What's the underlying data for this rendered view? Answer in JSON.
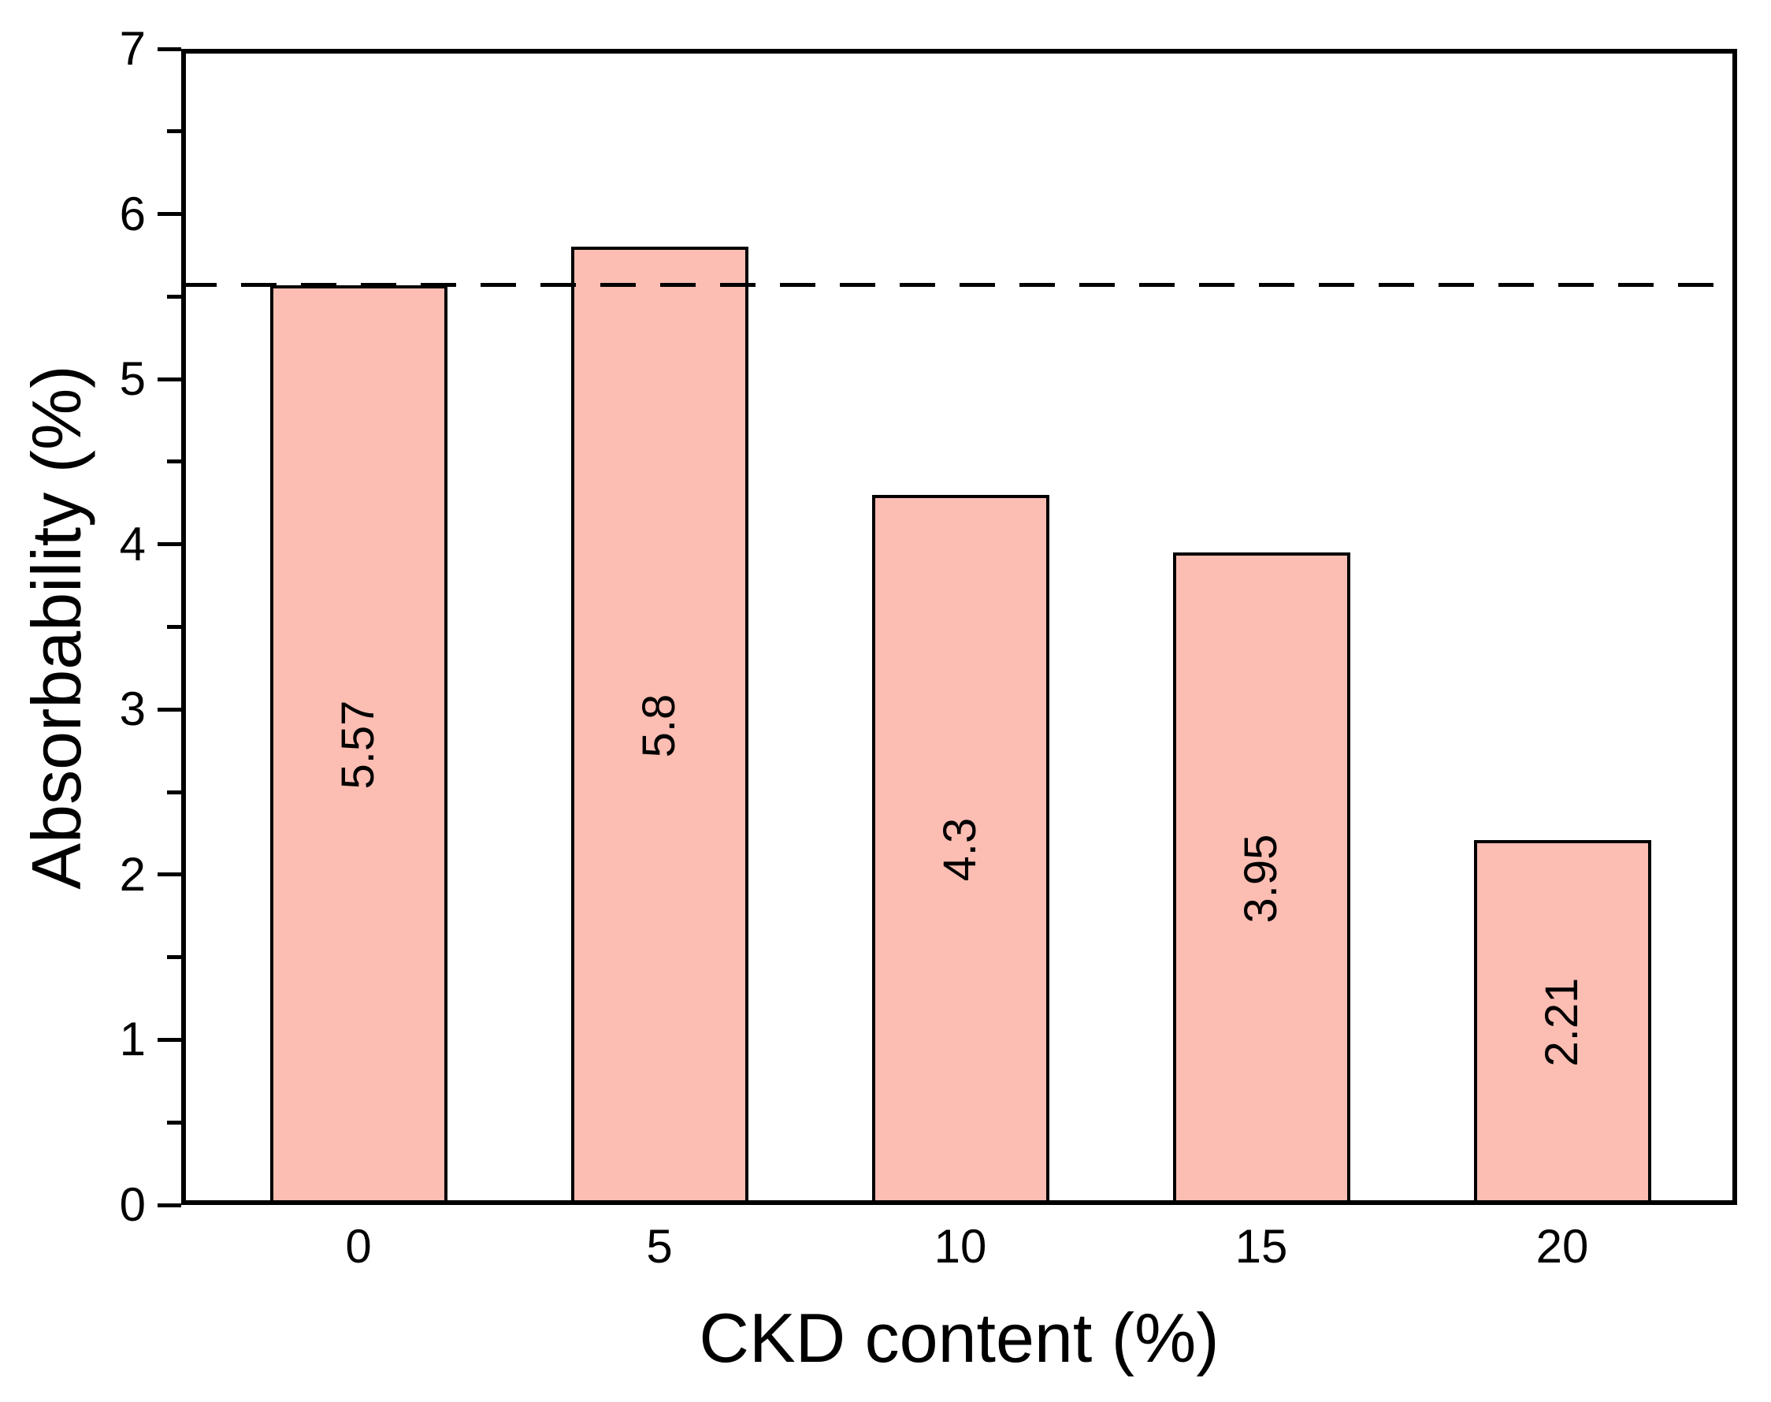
{
  "chart_data": {
    "type": "bar",
    "title": "",
    "xlabel": "CKD content (%)",
    "ylabel": "Absorbability (%)",
    "categories": [
      "0",
      "5",
      "10",
      "15",
      "20"
    ],
    "values": [
      5.57,
      5.8,
      4.3,
      3.95,
      2.21
    ],
    "bar_labels": [
      "5.57",
      "5.8",
      "4.3",
      "3.95",
      "2.21"
    ],
    "ylim": [
      0,
      7
    ],
    "ytick_major_step": 1,
    "ytick_minor_step": 0.5,
    "ytick_labels": [
      "0",
      "1",
      "2",
      "3",
      "4",
      "5",
      "6",
      "7"
    ],
    "grid": false,
    "legend": "none",
    "reference_line": {
      "value": 5.57,
      "style": "dashed",
      "color": "#000000"
    },
    "colors": {
      "bar_fill": "#fcbdb3",
      "bar_border": "#000000",
      "axis": "#000000",
      "text": "#000000",
      "background": "#ffffff"
    }
  }
}
